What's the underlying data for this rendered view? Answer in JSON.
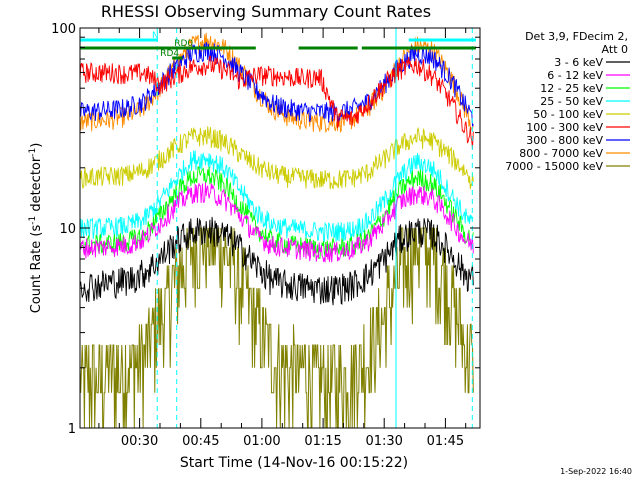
{
  "chart_data": {
    "type": "line",
    "title": "RHESSI Observing Summary Count Rates",
    "xlabel": "Start Time (14-Nov-16 00:15:22)",
    "ylabel_main": "Count Rate (s",
    "ylabel_sup": "-1",
    "ylabel_tail": " detector",
    "ylabel_sup2": "-1",
    "ylabel_close": ")",
    "y_scale": "log",
    "ylim": [
      1,
      100
    ],
    "y_ticks": [
      "1",
      "10",
      "100"
    ],
    "xlim_minutes": [
      15.37,
      113.5
    ],
    "x_ticks": [
      {
        "minute": 30,
        "label": "00:30"
      },
      {
        "minute": 45,
        "label": "00:45"
      },
      {
        "minute": 60,
        "label": "01:00"
      },
      {
        "minute": 75,
        "label": "01:15"
      },
      {
        "minute": 90,
        "label": "01:30"
      },
      {
        "minute": 105,
        "label": "01:45"
      }
    ],
    "legend_placement": "right",
    "legend_header": [
      "Det 3,9, FDecim 2,",
      "Att 0"
    ],
    "series": [
      {
        "name": "3 - 6 keV",
        "color": "#000000",
        "profile": [
          5.2,
          5.2,
          5.4,
          5.5,
          6.0,
          7.0,
          8.6,
          9.6,
          9.9,
          9.3,
          8.0,
          6.5,
          5.5,
          5.2,
          5.1,
          5.0,
          5.0,
          5.2,
          5.8,
          7.0,
          8.8,
          9.8,
          9.4,
          7.8,
          6.0,
          5.3
        ]
      },
      {
        "name": "6 - 12 keV",
        "color": "#ff00ff",
        "profile": [
          8.0,
          8.0,
          8.1,
          8.2,
          8.8,
          10.5,
          13.0,
          15.0,
          15.2,
          14.0,
          11.5,
          9.2,
          8.2,
          8.0,
          7.8,
          7.6,
          7.6,
          7.8,
          8.6,
          10.5,
          13.5,
          15.0,
          14.2,
          11.5,
          8.8,
          7.8
        ]
      },
      {
        "name": "12 - 25 keV",
        "color": "#00ff00",
        "profile": [
          8.3,
          8.3,
          8.4,
          8.6,
          9.2,
          11.5,
          15.0,
          18.0,
          18.4,
          16.5,
          13.0,
          10.0,
          8.6,
          8.3,
          8.1,
          7.9,
          7.9,
          8.1,
          9.0,
          11.5,
          15.5,
          18.0,
          16.8,
          13.0,
          9.5,
          8.0
        ]
      },
      {
        "name": "25 - 50 keV",
        "color": "#00ffff",
        "profile": [
          10.0,
          10.0,
          10.1,
          10.3,
          11.0,
          13.5,
          17.5,
          22.0,
          22.5,
          20.0,
          15.5,
          12.0,
          10.5,
          10.0,
          9.8,
          9.6,
          9.6,
          9.8,
          10.8,
          13.5,
          18.0,
          21.5,
          20.0,
          15.5,
          11.5,
          9.5
        ]
      },
      {
        "name": "50 - 100 keV",
        "color": "#cccc00",
        "profile": [
          18.0,
          18.0,
          18.2,
          18.5,
          19.5,
          22.0,
          25.5,
          28.5,
          29.0,
          27.0,
          23.5,
          20.5,
          18.8,
          18.0,
          17.8,
          17.5,
          17.5,
          17.8,
          19.0,
          22.0,
          26.0,
          28.5,
          27.5,
          23.5,
          19.5,
          15.0
        ]
      },
      {
        "name": "100 - 300 keV",
        "color": "#ff0000",
        "profile": [
          60.0,
          60.0,
          60.0,
          59.0,
          60.0,
          52.0,
          58.0,
          64.0,
          66.0,
          62.0,
          55.0,
          58.0,
          58.0,
          57.0,
          56.0,
          57.0,
          36.0,
          35.0,
          42.0,
          52.0,
          62.0,
          66.0,
          58.0,
          45.0,
          32.0,
          24.0
        ]
      },
      {
        "name": "300 - 800 keV",
        "color": "#0000ff",
        "profile": [
          38.0,
          38.5,
          39.0,
          40.0,
          43.0,
          52.0,
          64.0,
          75.0,
          78.0,
          72.0,
          60.0,
          49.0,
          42.0,
          39.5,
          38.5,
          38.0,
          38.0,
          39.0,
          43.0,
          52.0,
          65.0,
          75.0,
          72.0,
          58.0,
          42.0,
          30.0
        ]
      },
      {
        "name": "800 - 7000 keV",
        "color": "#ff8c00",
        "profile": [
          34.0,
          34.5,
          35.0,
          36.5,
          40.0,
          50.0,
          66.0,
          82.0,
          88.0,
          80.0,
          64.0,
          49.0,
          40.0,
          36.0,
          34.5,
          34.0,
          34.0,
          35.0,
          39.5,
          50.0,
          67.0,
          82.0,
          78.0,
          60.0,
          40.0,
          26.0
        ]
      },
      {
        "name": "7000 - 15000 keV",
        "color": "#808000",
        "profile": [
          1.8,
          1.8,
          1.9,
          2.0,
          2.4,
          3.5,
          5.5,
          8.0,
          9.0,
          7.8,
          5.5,
          3.5,
          2.4,
          2.0,
          1.9,
          1.8,
          1.8,
          1.9,
          2.4,
          3.6,
          6.0,
          8.5,
          7.8,
          5.0,
          2.8,
          1.5
        ]
      }
    ],
    "flag_bars": [
      {
        "label": "N",
        "color": "#00ffff",
        "segments": [
          [
            15.37,
            34.5
          ],
          [
            96.0,
            112.5
          ]
        ]
      },
      {
        "label": "RD0",
        "color": "#008000",
        "segments": [
          [
            15.37,
            58.5
          ],
          [
            69.0,
            83.5
          ],
          [
            84.5,
            112.5
          ]
        ]
      },
      {
        "label": "RD4",
        "color": "#008000",
        "segments": [
          [
            38.0,
            40.5
          ]
        ]
      }
    ],
    "vertical_lines": [
      {
        "minute": 34.3,
        "style": "dashed",
        "color": "#00ffff"
      },
      {
        "minute": 39.1,
        "style": "dashed",
        "color": "#00ffff"
      },
      {
        "minute": 92.9,
        "style": "solid",
        "color": "#00ffff"
      },
      {
        "minute": 111.6,
        "style": "dashed",
        "color": "#00ffff"
      }
    ],
    "footer_timestamp": "1-Sep-2022 16:40"
  }
}
